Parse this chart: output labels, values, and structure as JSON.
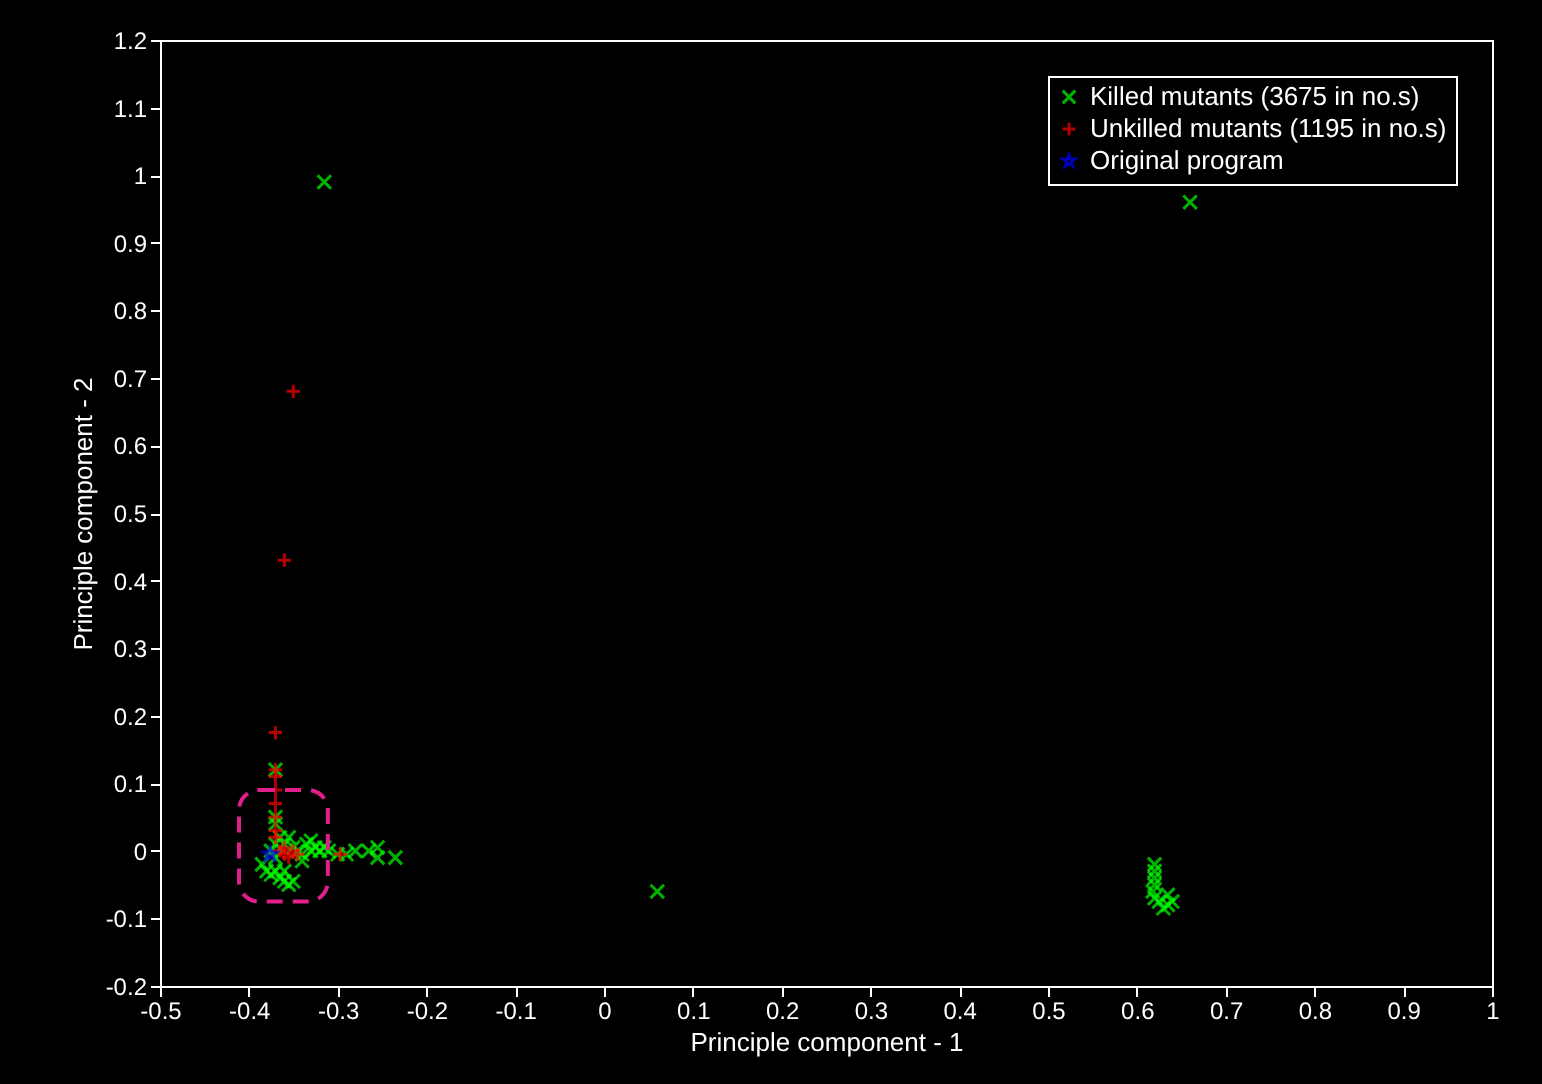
{
  "chart_data": {
    "type": "scatter",
    "xlabel": "Principle component - 1",
    "ylabel": "Principle component - 2",
    "xlim": [
      -0.5,
      1
    ],
    "ylim": [
      -0.2,
      1.2
    ],
    "xticks": [
      -0.5,
      -0.4,
      -0.3,
      -0.2,
      -0.1,
      0,
      0.1,
      0.2,
      0.3,
      0.4,
      0.5,
      0.6,
      0.7,
      0.8,
      0.9,
      1
    ],
    "yticks": [
      -0.2,
      -0.1,
      0,
      0.1,
      0.2,
      0.3,
      0.4,
      0.5,
      0.6,
      0.7,
      0.8,
      0.9,
      1,
      1.1,
      1.2
    ],
    "grid": false,
    "legend": "top right",
    "series": [
      {
        "name": "Killed mutants (3675 in no.s)",
        "color": "#00ff00",
        "x": [
          -0.38,
          -0.385,
          -0.375,
          -0.37,
          -0.365,
          -0.36,
          -0.355,
          -0.35,
          -0.36,
          -0.37,
          -0.375,
          -0.37,
          -0.365,
          -0.37,
          -0.37,
          -0.37,
          -0.36,
          -0.35,
          -0.345,
          -0.34,
          -0.335,
          -0.33,
          -0.325,
          -0.32,
          -0.315,
          -0.31,
          -0.3,
          -0.29,
          -0.28,
          -0.265,
          -0.255,
          -0.255,
          -0.235,
          -0.34,
          -0.33,
          -0.355,
          0.62,
          0.62,
          0.62,
          0.62,
          0.618,
          0.62,
          0.625,
          0.635,
          0.635,
          0.64,
          0.63,
          -0.315,
          0.66,
          0.06
        ],
        "values": [
          -0.03,
          -0.02,
          -0.035,
          -0.03,
          -0.04,
          -0.045,
          -0.05,
          -0.045,
          -0.03,
          -0.01,
          0.0,
          0.01,
          0.02,
          0.04,
          0.05,
          0.12,
          0.01,
          0.005,
          0.0,
          -0.005,
          0.01,
          0.0,
          0.005,
          0.0,
          0.005,
          0.0,
          -0.005,
          -0.005,
          0.0,
          0.0,
          0.005,
          -0.01,
          -0.01,
          -0.015,
          0.015,
          0.02,
          -0.02,
          -0.03,
          -0.04,
          -0.05,
          -0.06,
          -0.07,
          -0.075,
          -0.065,
          -0.08,
          -0.075,
          -0.085,
          0.99,
          0.96,
          -0.06
        ]
      },
      {
        "name": "Unkilled mutants (1195 in no.s)",
        "color": "#ff0000",
        "marker": "cross",
        "x": [
          -0.35,
          -0.36,
          -0.37,
          -0.37,
          -0.37,
          -0.37,
          -0.37,
          -0.37,
          -0.37,
          -0.37,
          -0.365,
          -0.36,
          -0.355,
          -0.35,
          -0.345,
          -0.36,
          -0.297
        ],
        "values": [
          0.68,
          0.43,
          0.175,
          0.12,
          0.11,
          0.09,
          0.07,
          0.05,
          0.03,
          0.02,
          0.0,
          -0.005,
          -0.01,
          0.0,
          -0.005,
          0.005,
          -0.005
        ]
      },
      {
        "name": "Original program",
        "color": "#0000ff",
        "marker": "star",
        "x": [
          -0.376
        ],
        "values": [
          -0.005
        ]
      }
    ]
  }
}
